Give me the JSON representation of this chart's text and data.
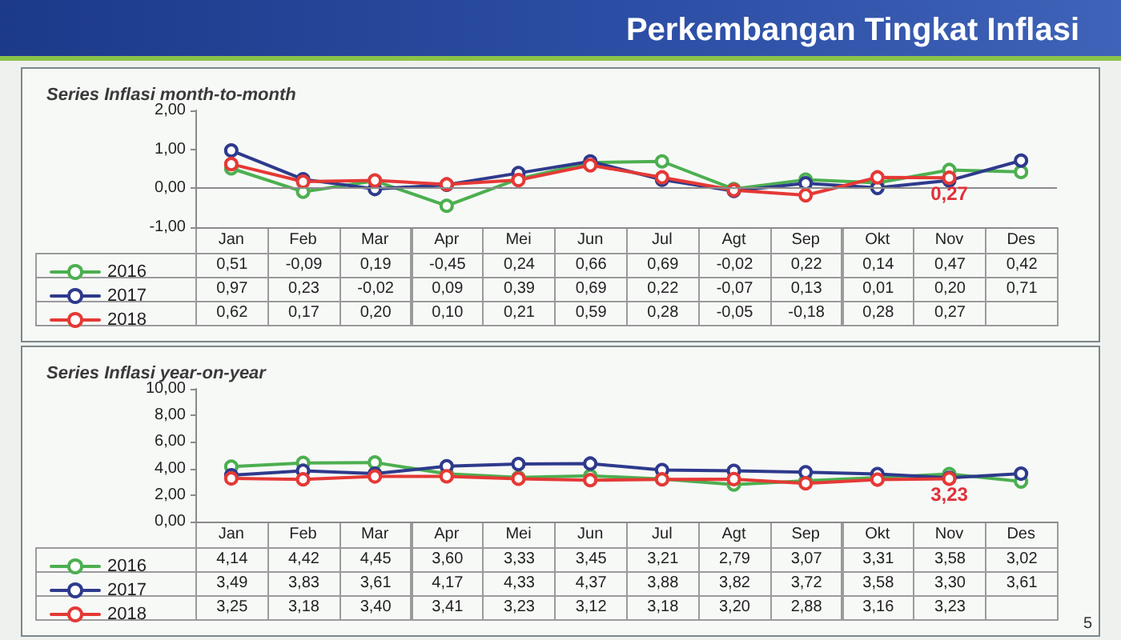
{
  "chart_data": [
    {
      "type": "line",
      "title": "Perkembangan Tingkat Inflasi",
      "subtitle": "Series Inflasi month-to-month",
      "categories": [
        "Jan",
        "Feb",
        "Mar",
        "Apr",
        "Mei",
        "Jun",
        "Jul",
        "Agt",
        "Sep",
        "Okt",
        "Nov",
        "Des"
      ],
      "series": [
        {
          "name": "2016",
          "color": "#4caf50",
          "values": [
            0.51,
            -0.09,
            0.19,
            -0.45,
            0.24,
            0.66,
            0.69,
            -0.02,
            0.22,
            0.14,
            0.47,
            0.42
          ],
          "value_labels": [
            "0,51",
            "-0,09",
            "0,19",
            "-0,45",
            "0,24",
            "0,66",
            "0,69",
            "-0,02",
            "0,22",
            "0,14",
            "0,47",
            "0,42"
          ]
        },
        {
          "name": "2017",
          "color": "#2e3a8c",
          "values": [
            0.97,
            0.23,
            -0.02,
            0.09,
            0.39,
            0.69,
            0.22,
            -0.07,
            0.13,
            0.01,
            0.2,
            0.71
          ],
          "value_labels": [
            "0,97",
            "0,23",
            "-0,02",
            "0,09",
            "0,39",
            "0,69",
            "0,22",
            "-0,07",
            "0,13",
            "0,01",
            "0,20",
            "0,71"
          ]
        },
        {
          "name": "2018",
          "color": "#e53935",
          "values": [
            0.62,
            0.17,
            0.2,
            0.1,
            0.21,
            0.59,
            0.28,
            -0.05,
            -0.18,
            0.28,
            0.27,
            null
          ],
          "value_labels": [
            "0,62",
            "0,17",
            "0,20",
            "0,10",
            "0,21",
            "0,59",
            "0,28",
            "-0,05",
            "-0,18",
            "0,28",
            "0,27",
            null
          ]
        }
      ],
      "ylim": [
        -1,
        2
      ],
      "yticks": [
        {
          "value": -1,
          "label": "-1,00"
        },
        {
          "value": 0,
          "label": "0,00"
        },
        {
          "value": 1,
          "label": "1,00"
        },
        {
          "value": 2,
          "label": "2,00"
        }
      ],
      "ref_lines": [
        {
          "axis": "y",
          "value": 0,
          "color": "#8a8a8a"
        }
      ],
      "legend": "bottom left",
      "marker": "circle",
      "line_style": "solid",
      "annotations": [
        {
          "text": "0,27",
          "x": "Nov",
          "y": 0.27
        }
      ]
    },
    {
      "type": "line",
      "title": "Series Inflasi year-on-year",
      "categories": [
        "Jan",
        "Feb",
        "Mar",
        "Apr",
        "Mei",
        "Jun",
        "Jul",
        "Agt",
        "Sep",
        "Okt",
        "Nov",
        "Des"
      ],
      "series": [
        {
          "name": "2016",
          "color": "#4caf50",
          "values": [
            4.14,
            4.42,
            4.45,
            3.6,
            3.33,
            3.45,
            3.21,
            2.79,
            3.07,
            3.31,
            3.58,
            3.02
          ],
          "value_labels": [
            "4,14",
            "4,42",
            "4,45",
            "3,60",
            "3,33",
            "3,45",
            "3,21",
            "2,79",
            "3,07",
            "3,31",
            "3,58",
            "3,02"
          ]
        },
        {
          "name": "2017",
          "color": "#2e3a8c",
          "values": [
            3.49,
            3.83,
            3.61,
            4.17,
            4.33,
            4.37,
            3.88,
            3.82,
            3.72,
            3.58,
            3.3,
            3.61
          ],
          "value_labels": [
            "3,49",
            "3,83",
            "3,61",
            "4,17",
            "4,33",
            "4,37",
            "3,88",
            "3,82",
            "3,72",
            "3,58",
            "3,30",
            "3,61"
          ]
        },
        {
          "name": "2018",
          "color": "#e53935",
          "values": [
            3.25,
            3.18,
            3.4,
            3.41,
            3.23,
            3.12,
            3.18,
            3.2,
            2.88,
            3.16,
            3.23,
            null
          ],
          "value_labels": [
            "3,25",
            "3,18",
            "3,40",
            "3,41",
            "3,23",
            "3,12",
            "3,18",
            "3,20",
            "2,88",
            "3,16",
            "3,23",
            null
          ]
        }
      ],
      "ylim": [
        0,
        10
      ],
      "yticks": [
        {
          "value": 0,
          "label": "0,00"
        },
        {
          "value": 2,
          "label": "2,00"
        },
        {
          "value": 4,
          "label": "4,00"
        },
        {
          "value": 6,
          "label": "6,00"
        },
        {
          "value": 8,
          "label": "8,00"
        },
        {
          "value": 10,
          "label": "10,00"
        }
      ],
      "legend": "bottom left",
      "marker": "circle",
      "line_style": "solid",
      "annotations": [
        {
          "text": "3,23",
          "x": "Nov",
          "y": 3.23
        },
        "5"
      ]
    }
  ]
}
